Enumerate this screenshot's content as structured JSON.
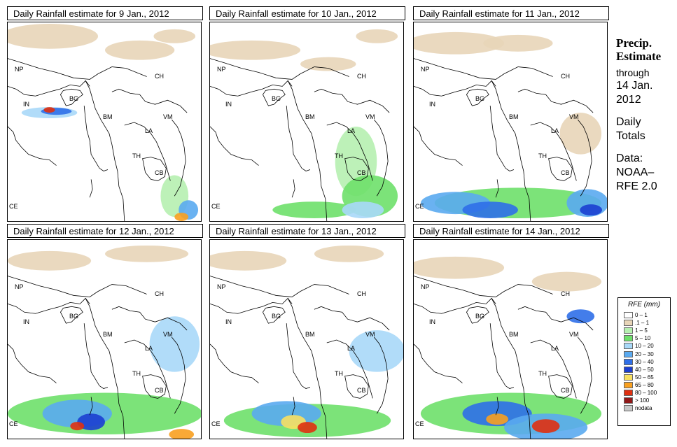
{
  "panels": [
    {
      "title": "Daily Rainfall estimate for  9 Jan., 2012"
    },
    {
      "title": "Daily Rainfall estimate for  10 Jan., 2012"
    },
    {
      "title": "Daily Rainfall estimate for  11 Jan., 2012"
    },
    {
      "title": "Daily Rainfall estimate for  12 Jan., 2012"
    },
    {
      "title": "Daily Rainfall estimate for  13 Jan., 2012"
    },
    {
      "title": "Daily Rainfall estimate for  14 Jan., 2012"
    }
  ],
  "country_labels": [
    "NP",
    "CH",
    "IN",
    "BG",
    "BM",
    "VM",
    "LA",
    "TH",
    "CB",
    "CE"
  ],
  "side": {
    "heading1": "Precip.",
    "heading2": "Estimate",
    "through": "through",
    "date1": "14 Jan.",
    "date2": "2012",
    "daily1": "Daily",
    "daily2": "Totals",
    "data1": "Data:",
    "data2": "NOAA–",
    "data3": "RFE 2.0"
  },
  "legend": {
    "title": "RFE (mm)",
    "items": [
      {
        "label": "0 – 1",
        "color": "#ffffff"
      },
      {
        "label": ".1 – 1",
        "color": "#e8d5b8"
      },
      {
        "label": "1 – 5",
        "color": "#b6f0b0"
      },
      {
        "label": "5 – 10",
        "color": "#6ee06a"
      },
      {
        "label": "10 – 20",
        "color": "#a8d8f8"
      },
      {
        "label": "20 – 30",
        "color": "#5aaaf0"
      },
      {
        "label": "30 – 40",
        "color": "#2f6fe8"
      },
      {
        "label": "40 – 50",
        "color": "#1c3fd0"
      },
      {
        "label": "50 – 65",
        "color": "#f8e060"
      },
      {
        "label": "65 – 80",
        "color": "#f8a020"
      },
      {
        "label": "80 – 100",
        "color": "#e03010"
      },
      {
        "label": "> 100",
        "color": "#901818"
      },
      {
        "label": "nodata",
        "color": "#c8c8c8"
      }
    ]
  }
}
